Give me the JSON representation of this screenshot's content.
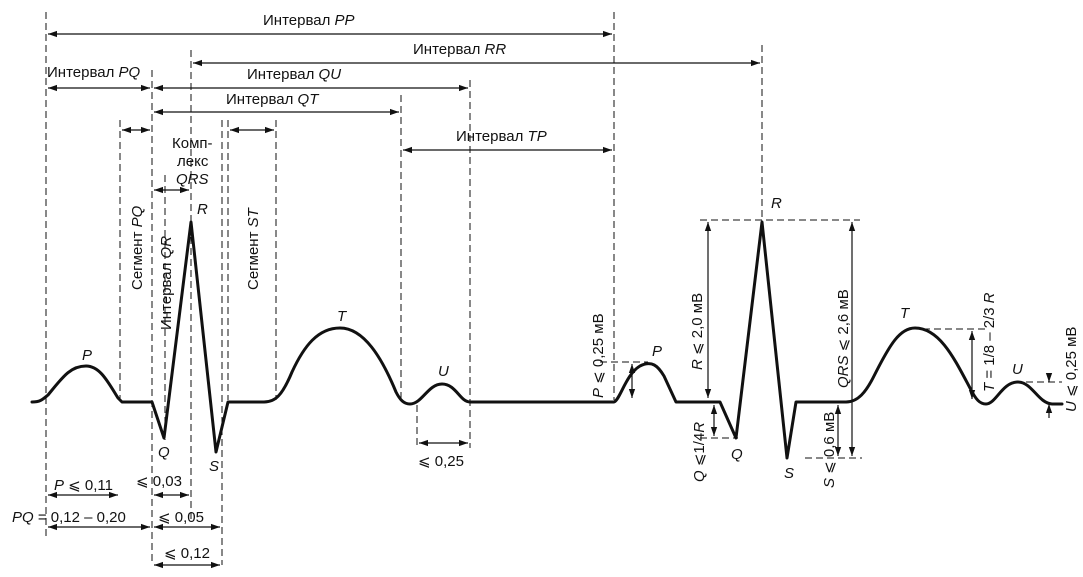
{
  "intervals": {
    "pp": {
      "word": "Интервал",
      "name": "PP"
    },
    "rr": {
      "word": "Интервал",
      "name": "RR"
    },
    "pq": {
      "word": "Интервал",
      "name": "PQ"
    },
    "qu": {
      "word": "Интервал",
      "name": "QU"
    },
    "qt": {
      "word": "Интервал",
      "name": "QT"
    },
    "tp": {
      "word": "Интервал",
      "name": "TP"
    },
    "qr": {
      "word": "Интервал",
      "name": "QR"
    }
  },
  "segments": {
    "pq": {
      "word": "Сегмент",
      "name": "PQ"
    },
    "st": {
      "word": "Сегмент",
      "name": "ST"
    }
  },
  "complex": {
    "line1": "Комп-",
    "line2": "лекс",
    "line3": "QRS"
  },
  "waves": {
    "p": "P",
    "q": "Q",
    "r": "R",
    "s": "S",
    "t": "T",
    "u": "U",
    "p2": "P",
    "q2": "Q",
    "r2": "R",
    "s2": "S",
    "t2": "T",
    "u2": "U"
  },
  "measurements": {
    "p_dur": {
      "sym": "P",
      "rest": " ⩽ 0,11"
    },
    "qr_dur": "⩽ 0,03",
    "pq_dur": {
      "sym": "PQ",
      "rest": " = 0,12 – 0,20"
    },
    "q_s_dur": "⩽ 0,05",
    "qrs_dur": "⩽ 0,12",
    "u_dur": "⩽ 0,25"
  },
  "amplitudes": {
    "p_amp": {
      "sym": "P",
      "rest": " ⩽ 0,25 мВ"
    },
    "r_amp": {
      "sym": "R",
      "rest": " ⩽ 2,0 мВ"
    },
    "q_amp": {
      "sym": "Q",
      "rest": " ⩽1/4",
      "sym2": "R"
    },
    "s_amp": {
      "sym": "S",
      "rest": " ⩽ 0,6 мВ"
    },
    "qrs_amp": {
      "sym": "QRS",
      "rest": " ⩽ 2,6 мВ"
    },
    "t_amp": {
      "sym": "T",
      "rest": " = 1/8 – 2/3",
      "sym2": "R"
    },
    "u_amp": {
      "sym": "U",
      "rest": " ⩽ 0,25 мВ"
    }
  }
}
